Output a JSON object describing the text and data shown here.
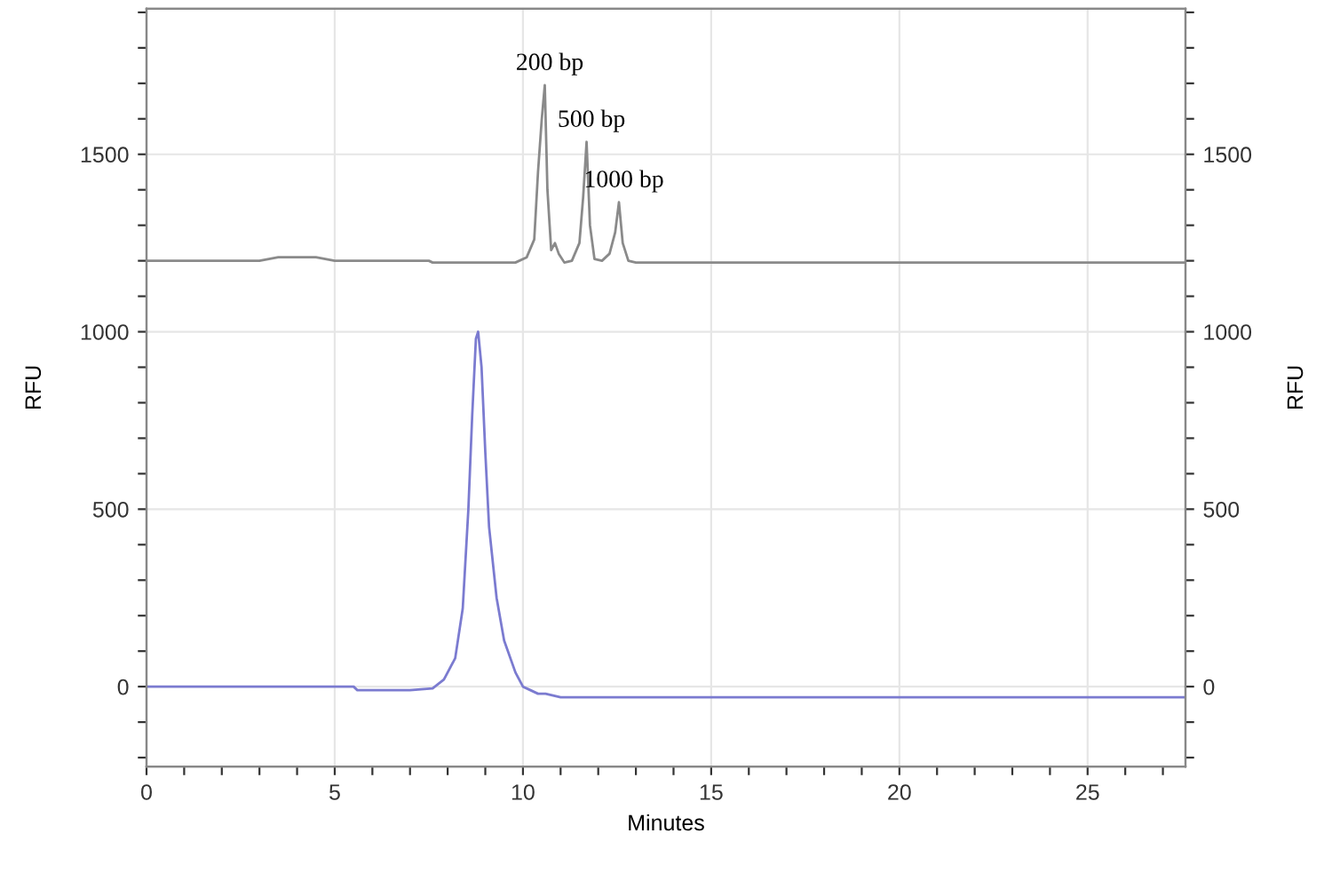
{
  "chart_data": {
    "type": "line",
    "xlabel": "Minutes",
    "ylabel": "RFU",
    "y2label": "RFU",
    "grid": true,
    "marker": "none",
    "line_style": "solid",
    "legend": false,
    "xlim": [
      0,
      27.6
    ],
    "ylim": [
      -225,
      1910
    ],
    "y2lim": [
      -225,
      1910
    ],
    "xticks": [
      0,
      {
        "value": 1,
        "label": null
      },
      {
        "value": 2,
        "label": null
      },
      {
        "value": 3,
        "label": null
      },
      {
        "value": 4,
        "label": null
      },
      5,
      {
        "value": 6,
        "label": null
      },
      {
        "value": 7,
        "label": null
      },
      {
        "value": 8,
        "label": null
      },
      {
        "value": 9,
        "label": null
      },
      10,
      {
        "value": 11,
        "label": null
      },
      {
        "value": 12,
        "label": null
      },
      {
        "value": 13,
        "label": null
      },
      {
        "value": 14,
        "label": null
      },
      15,
      {
        "value": 16,
        "label": null
      },
      {
        "value": 17,
        "label": null
      },
      {
        "value": 18,
        "label": null
      },
      {
        "value": 19,
        "label": null
      },
      20,
      {
        "value": 21,
        "label": null
      },
      {
        "value": 22,
        "label": null
      },
      {
        "value": 23,
        "label": null
      },
      {
        "value": 24,
        "label": null
      },
      25,
      {
        "value": 26,
        "label": null
      },
      {
        "value": 27,
        "label": null
      }
    ],
    "yticks": [
      {
        "value": -200,
        "label": null
      },
      {
        "value": -100,
        "label": null
      },
      0,
      {
        "value": 100,
        "label": null
      },
      {
        "value": 200,
        "label": null
      },
      {
        "value": 300,
        "label": null
      },
      {
        "value": 400,
        "label": null
      },
      500,
      {
        "value": 600,
        "label": null
      },
      {
        "value": 700,
        "label": null
      },
      {
        "value": 800,
        "label": null
      },
      {
        "value": 900,
        "label": null
      },
      1000,
      {
        "value": 1100,
        "label": null
      },
      {
        "value": 1200,
        "label": null
      },
      {
        "value": 1300,
        "label": null
      },
      {
        "value": 1400,
        "label": null
      },
      1500,
      {
        "value": 1600,
        "label": null
      },
      {
        "value": 1700,
        "label": null
      },
      {
        "value": 1800,
        "label": null
      },
      {
        "value": 1900,
        "label": null
      }
    ],
    "y2ticks": [
      {
        "value": -200,
        "label": null
      },
      {
        "value": -100,
        "label": null
      },
      0,
      {
        "value": 100,
        "label": null
      },
      {
        "value": 200,
        "label": null
      },
      {
        "value": 300,
        "label": null
      },
      {
        "value": 400,
        "label": null
      },
      500,
      {
        "value": 600,
        "label": null
      },
      {
        "value": 700,
        "label": null
      },
      {
        "value": 800,
        "label": null
      },
      {
        "value": 900,
        "label": null
      },
      1000,
      {
        "value": 1100,
        "label": null
      },
      {
        "value": 1200,
        "label": null
      },
      {
        "value": 1300,
        "label": null
      },
      {
        "value": 1400,
        "label": null
      },
      1500,
      {
        "value": 1600,
        "label": null
      },
      {
        "value": 1700,
        "label": null
      },
      {
        "value": 1800,
        "label": null
      },
      {
        "value": 1900,
        "label": null
      }
    ],
    "series": [
      {
        "color": "#8a8a8a",
        "x": [
          0,
          1,
          2,
          3,
          3.5,
          4,
          4.5,
          5,
          6,
          7,
          7.5,
          7.6,
          8,
          9,
          9.8,
          10.1,
          10.3,
          10.4,
          10.5,
          10.58,
          10.65,
          10.75,
          10.85,
          10.95,
          11.1,
          11.3,
          11.5,
          11.6,
          11.69,
          11.78,
          11.9,
          12.1,
          12.3,
          12.45,
          12.55,
          12.65,
          12.8,
          13,
          14,
          15,
          17,
          20,
          23,
          25,
          27.6
        ],
        "values": [
          1200,
          1200,
          1200,
          1200,
          1210,
          1210,
          1210,
          1200,
          1200,
          1200,
          1200,
          1195,
          1195,
          1195,
          1195,
          1210,
          1260,
          1450,
          1600,
          1695,
          1400,
          1230,
          1250,
          1220,
          1195,
          1200,
          1250,
          1380,
          1535,
          1300,
          1205,
          1200,
          1220,
          1280,
          1365,
          1250,
          1200,
          1195,
          1195,
          1195,
          1195,
          1195,
          1195,
          1195,
          1195
        ]
      },
      {
        "color": "#7b7bd0",
        "x": [
          0,
          2,
          4,
          5.5,
          5.6,
          7,
          7.6,
          7.9,
          8.2,
          8.4,
          8.55,
          8.65,
          8.75,
          8.81,
          8.9,
          9.0,
          9.1,
          9.3,
          9.5,
          9.8,
          10.0,
          10.2,
          10.4,
          10.6,
          11.0,
          15,
          20,
          25,
          27.6
        ],
        "values": [
          0,
          0,
          0,
          0,
          -10,
          -10,
          -5,
          20,
          80,
          220,
          500,
          760,
          980,
          1000,
          900,
          660,
          450,
          250,
          130,
          40,
          0,
          -10,
          -20,
          -20,
          -30,
          -30,
          -30,
          -30,
          -30
        ]
      }
    ],
    "annotations": [
      {
        "text": "200 bp",
        "x": 10.58,
        "y": 1695
      },
      {
        "text": "500 bp",
        "x": 11.69,
        "y": 1535
      },
      {
        "text": "1000 bp",
        "x": 12.55,
        "y": 1365
      }
    ]
  }
}
